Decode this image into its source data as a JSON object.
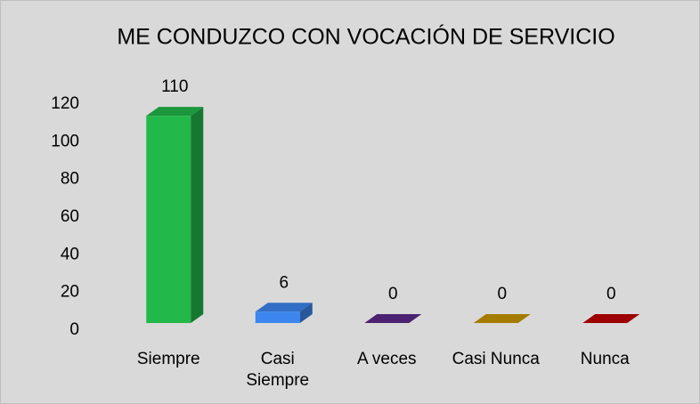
{
  "chart_data": {
    "type": "bar3d",
    "title": "ME CONDUZCO CON VOCACIÓN DE SERVICIO",
    "categories": [
      "Siempre",
      "Casi Siempre",
      "A veces",
      "Casi Nunca",
      "Nunca"
    ],
    "values": [
      110,
      6,
      0,
      0,
      0
    ],
    "colors": [
      "#22b84a",
      "#3d86f0",
      "#5b2a8a",
      "#c99700",
      "#c00000"
    ],
    "ylim": [
      0,
      120
    ],
    "yticks": [
      0,
      20,
      40,
      60,
      80,
      100,
      120
    ],
    "grid": false
  }
}
